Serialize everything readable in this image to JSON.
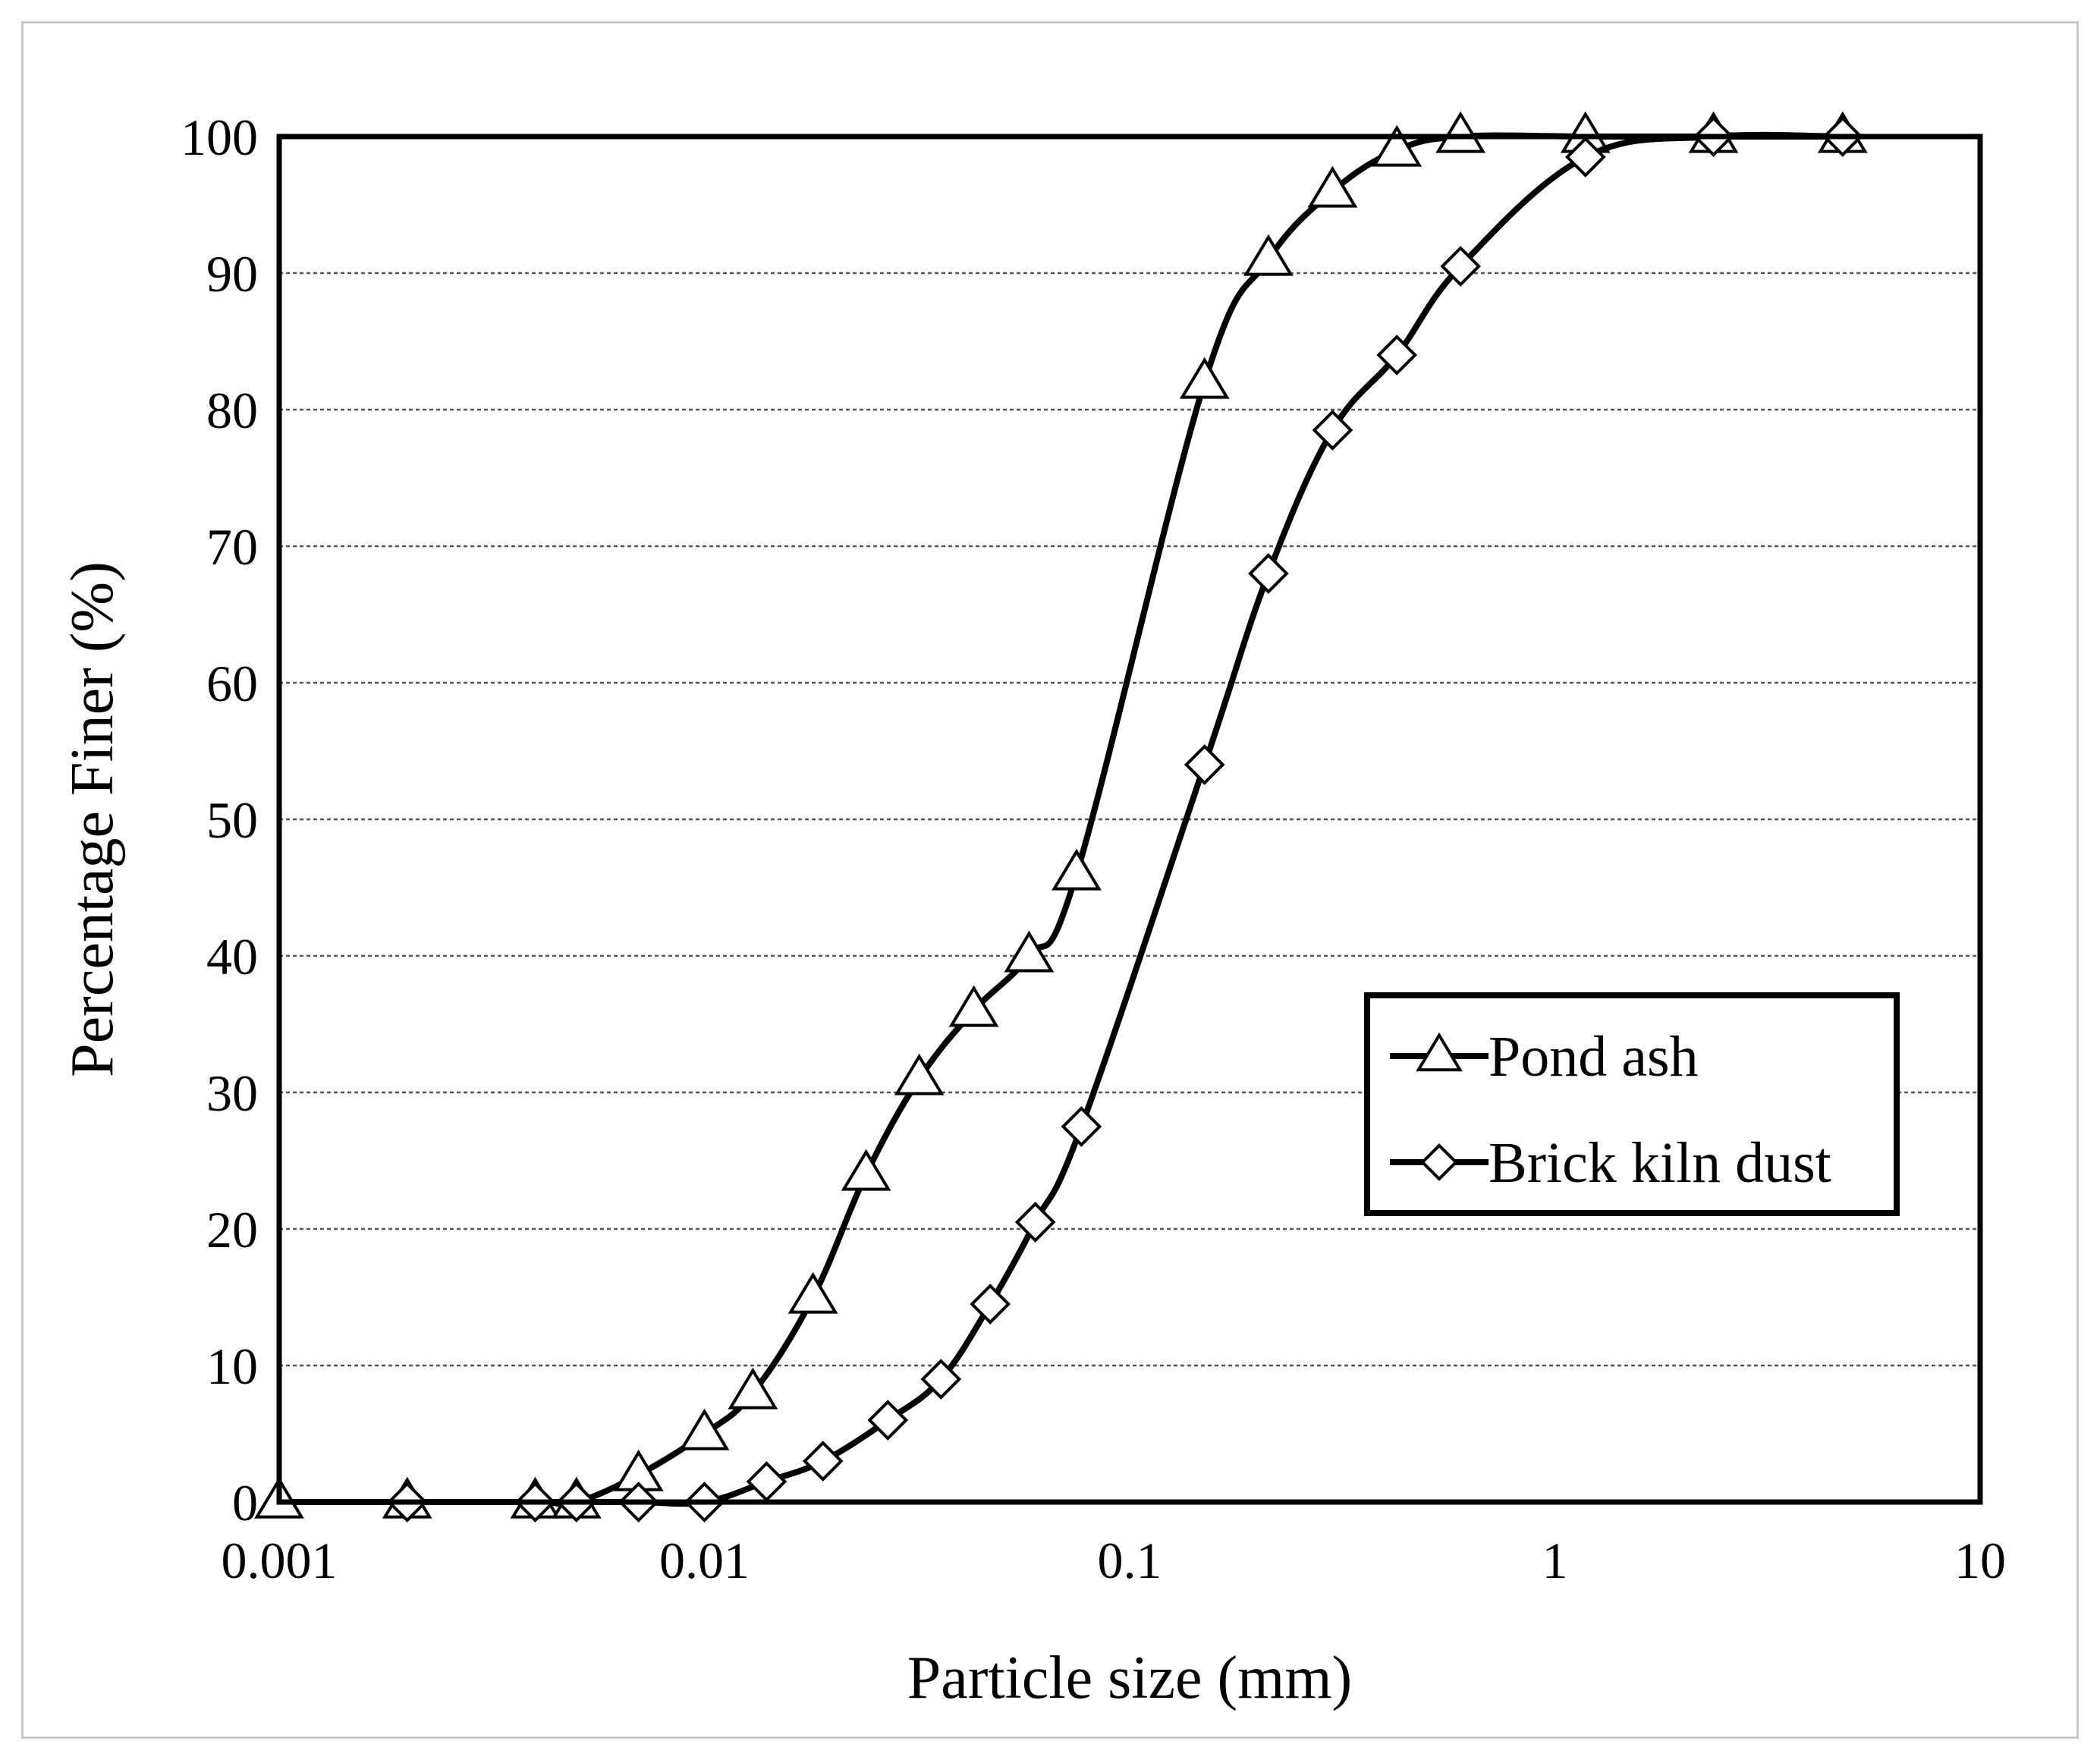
{
  "chart_data": {
    "type": "line",
    "title": "",
    "xlabel": "Particle size (mm)",
    "ylabel": "Percentage Finer (%)",
    "xscale": "log",
    "xlim": [
      0.001,
      10
    ],
    "ylim": [
      0,
      100
    ],
    "xticks": [
      0.001,
      0.01,
      0.1,
      1,
      10
    ],
    "xtick_labels": [
      "0.001",
      "0.01",
      "0.1",
      "1",
      "10"
    ],
    "yticks": [
      0,
      10,
      20,
      30,
      40,
      50,
      60,
      70,
      80,
      90,
      100
    ],
    "ytick_labels": [
      "0",
      "10",
      "20",
      "30",
      "40",
      "50",
      "60",
      "70",
      "80",
      "90",
      "100"
    ],
    "grid": "horizontal dashed",
    "legend_position": "right-middle",
    "series": [
      {
        "name": "Pond ash",
        "marker": "triangle",
        "x": [
          0.001,
          0.002,
          0.004,
          0.005,
          0.007,
          0.01,
          0.013,
          0.018,
          0.024,
          0.032,
          0.043,
          0.058,
          0.075,
          0.15,
          0.212,
          0.3,
          0.425,
          0.6,
          1.18,
          2.36,
          4.75
        ],
        "y": [
          0,
          0,
          0,
          0,
          2,
          5,
          8,
          15,
          24,
          31,
          36,
          40,
          46,
          82,
          91,
          96,
          99,
          100,
          100,
          100,
          100
        ]
      },
      {
        "name": "Brick kiln dust",
        "marker": "diamond",
        "x": [
          0.002,
          0.004,
          0.005,
          0.007,
          0.01,
          0.014,
          0.019,
          0.027,
          0.036,
          0.047,
          0.06,
          0.077,
          0.15,
          0.212,
          0.3,
          0.425,
          0.6,
          1.18,
          2.36,
          4.75
        ],
        "y": [
          0,
          0,
          0,
          0,
          0,
          1.5,
          3,
          6,
          9,
          14.5,
          20.5,
          27.5,
          54,
          68,
          78.5,
          84,
          90.5,
          98.5,
          100,
          100
        ]
      }
    ]
  }
}
